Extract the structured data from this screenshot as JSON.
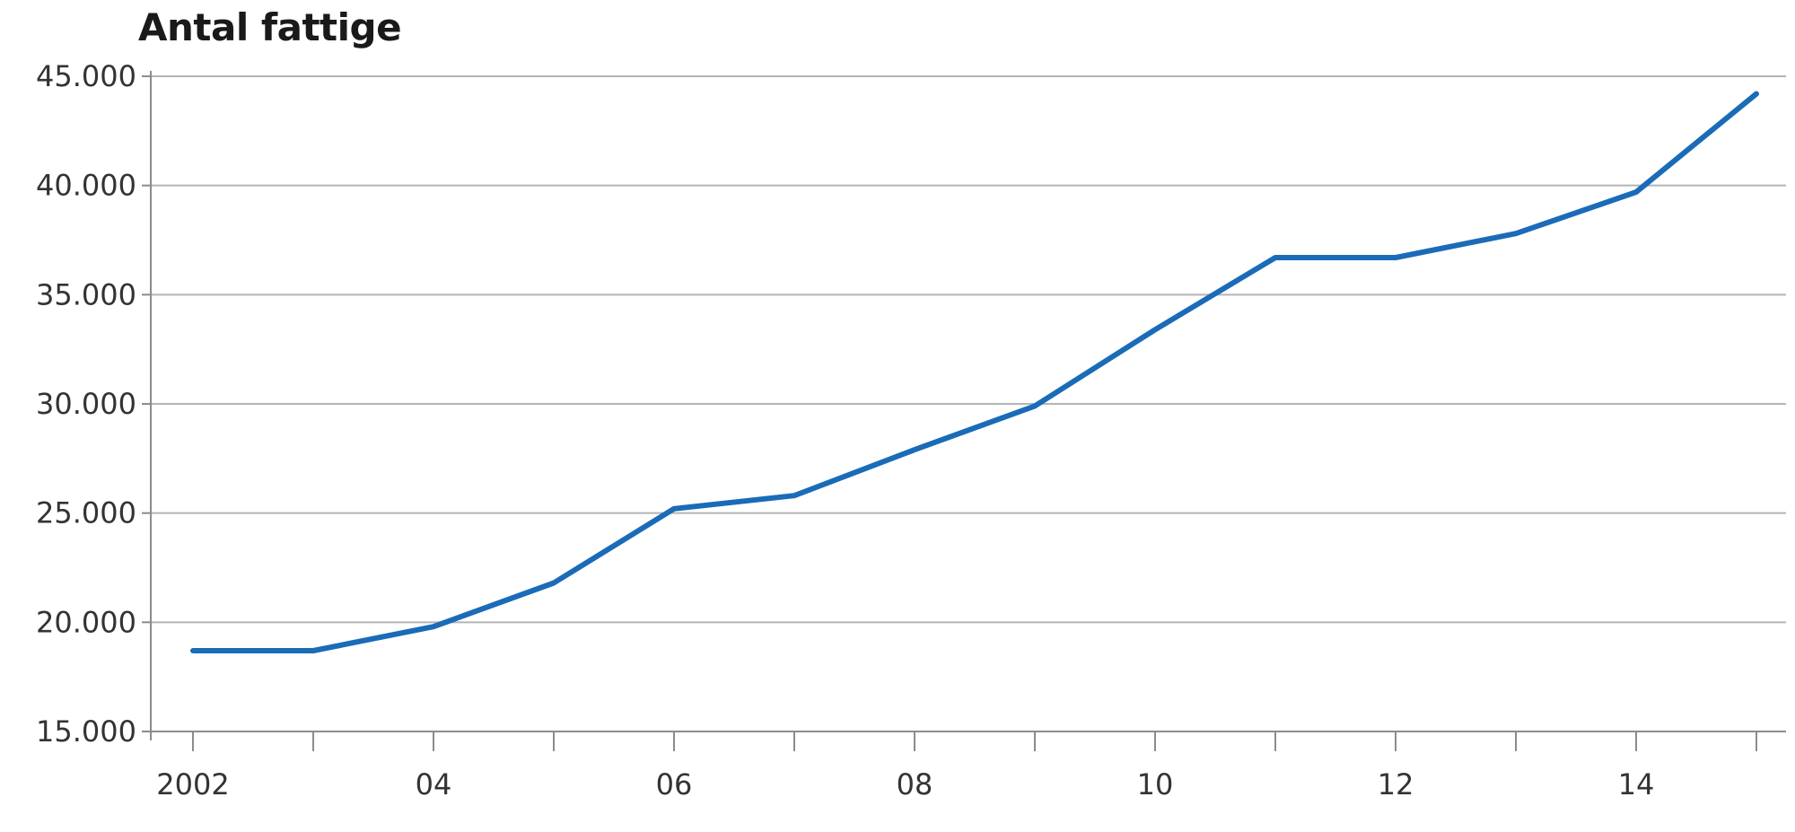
{
  "chart_data": {
    "type": "line",
    "title": "Antal fattige",
    "xlabel": "",
    "ylabel": "",
    "x": [
      2002,
      2003,
      2004,
      2005,
      2006,
      2007,
      2008,
      2009,
      2010,
      2011,
      2012,
      2013,
      2014,
      2015
    ],
    "series": [
      {
        "values": [
          18700,
          18700,
          19800,
          21800,
          25200,
          25800,
          27900,
          29900,
          33400,
          36700,
          36700,
          37800,
          39700,
          44200
        ],
        "color": "#1a6bb8"
      }
    ],
    "xlim": [
      2002,
      2015
    ],
    "ylim": [
      15000,
      45000
    ],
    "y_ticks": [
      15000,
      20000,
      25000,
      30000,
      35000,
      40000,
      45000
    ],
    "y_tick_labels": [
      "15.000",
      "20.000",
      "25.000",
      "30.000",
      "35.000",
      "40.000",
      "45.000"
    ],
    "x_ticks": [
      2002,
      2003,
      2004,
      2005,
      2006,
      2007,
      2008,
      2009,
      2010,
      2011,
      2012,
      2013,
      2014,
      2015
    ],
    "x_tick_labels": [
      "2002",
      "04",
      "06",
      "08",
      "10",
      "12",
      "14"
    ],
    "x_tick_label_years": [
      2002,
      2004,
      2006,
      2008,
      2010,
      2012,
      2014
    ],
    "grid": true,
    "legend": "none"
  }
}
